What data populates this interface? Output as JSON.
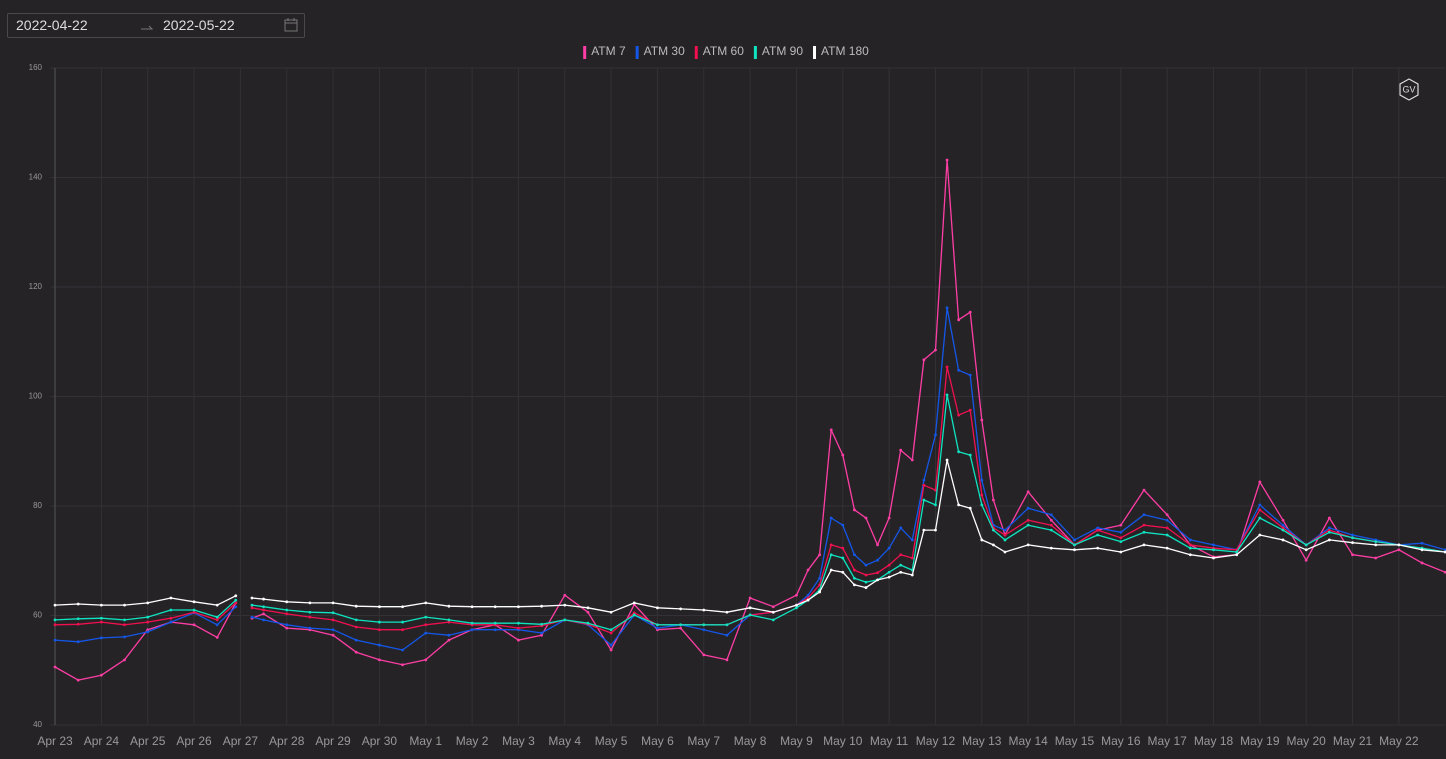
{
  "date_range": {
    "start": "2022-04-22",
    "end": "2022-05-22"
  },
  "logo": "GV",
  "chart_data": {
    "type": "line",
    "x": [
      0,
      0.5,
      1,
      1.5,
      2,
      2.5,
      3,
      3.5,
      3.9,
      4.05,
      4.25,
      4.5,
      5,
      5.5,
      6,
      6.5,
      7,
      7.5,
      8,
      8.5,
      9,
      9.5,
      10,
      10.5,
      11,
      11.5,
      12,
      12.5,
      13,
      13.5,
      14,
      14.5,
      15,
      15.5,
      16,
      16.25,
      16.5,
      16.75,
      17,
      17.25,
      17.5,
      17.75,
      18,
      18.25,
      18.5,
      18.75,
      19,
      19.25,
      19.5,
      19.75,
      20,
      20.25,
      20.5,
      21,
      21.5,
      22,
      22.5,
      23,
      23.5,
      24,
      24.5,
      25,
      25.5,
      26,
      26.5,
      27,
      27.5,
      28,
      28.5,
      29,
      29.5,
      30
    ],
    "series": [
      {
        "name": "ATM 7",
        "color": "#ff3ea5",
        "values": [
          50.6,
          48.2,
          49.1,
          51.9,
          57.4,
          58.8,
          58.3,
          56,
          62.3,
          null,
          59.5,
          60.3,
          57.7,
          57.4,
          56.4,
          53.3,
          51.9,
          51,
          51.9,
          55.5,
          57.4,
          58.3,
          55.5,
          56.4,
          63.7,
          60.6,
          53.7,
          62,
          57.4,
          57.7,
          52.8,
          51.9,
          63.2,
          61.6,
          63.7,
          68.3,
          71.1,
          93.9,
          89.3,
          79.3,
          77.8,
          72.9,
          77.8,
          90.2,
          88.4,
          106.7,
          108.5,
          143.2,
          114,
          115.4,
          95.7,
          81.1,
          74.7,
          82.6,
          77.4,
          72.9,
          75.6,
          76.5,
          82.9,
          78.4,
          72.9,
          70.7,
          71.1,
          84.4,
          77.4,
          70.1,
          77.8,
          71.1,
          70.5,
          72,
          69.6,
          67.9
        ]
      },
      {
        "name": "ATM 30",
        "color": "#1457e8",
        "values": [
          55.5,
          55.2,
          55.9,
          56.1,
          57,
          58.8,
          60.5,
          58.3,
          61.6,
          null,
          59.7,
          59.2,
          58.3,
          57.7,
          57.4,
          55.5,
          54.6,
          53.7,
          56.8,
          56.4,
          57.4,
          57.4,
          57.4,
          56.8,
          59.2,
          58.3,
          54.6,
          60.1,
          57.7,
          58.3,
          57.4,
          56.4,
          60.1,
          60.6,
          61.9,
          63.7,
          66.8,
          77.8,
          76.5,
          71.1,
          69.2,
          70.1,
          72.3,
          76,
          73.8,
          84.7,
          93,
          116.2,
          104.8,
          103.9,
          84.7,
          76.5,
          75.6,
          79.6,
          78.4,
          73.8,
          76,
          75.2,
          78.4,
          77.4,
          73.8,
          72.9,
          72,
          80.2,
          76.5,
          72.9,
          76,
          74.7,
          73.8,
          72.9,
          73.2,
          72
        ]
      },
      {
        "name": "ATM 60",
        "color": "#f0104f",
        "values": [
          58.3,
          58.4,
          58.8,
          58.3,
          58.8,
          59.5,
          60.6,
          59.2,
          62.3,
          null,
          61.4,
          61,
          60.3,
          59.7,
          59.2,
          57.9,
          57.4,
          57.4,
          58.3,
          58.8,
          58.3,
          58.3,
          57.7,
          58.1,
          59.2,
          58.4,
          56.8,
          60.5,
          58.3,
          58.3,
          58.3,
          58.3,
          60.1,
          60.6,
          61.9,
          63.2,
          65.6,
          72.9,
          72.3,
          68.3,
          67.4,
          67.8,
          69.2,
          71.1,
          70.5,
          83.8,
          82.9,
          105.4,
          96.6,
          97.5,
          82,
          76,
          74.7,
          77.4,
          76.5,
          72.9,
          75.6,
          74.2,
          76.5,
          76,
          72.9,
          72.3,
          72,
          79.3,
          76,
          72.9,
          75.6,
          74.2,
          73.5,
          72.9,
          72.3,
          71.6
        ]
      },
      {
        "name": "ATM 90",
        "color": "#0fe3c0",
        "values": [
          59.2,
          59.4,
          59.5,
          59.2,
          59.7,
          61,
          61,
          59.7,
          62.8,
          null,
          61.9,
          61.6,
          61,
          60.6,
          60.5,
          59.2,
          58.8,
          58.8,
          59.7,
          59.2,
          58.6,
          58.6,
          58.6,
          58.4,
          59.2,
          58.6,
          57.4,
          60.1,
          58.3,
          58.3,
          58.3,
          58.3,
          60.1,
          59.2,
          61.4,
          62.8,
          64.7,
          71.1,
          70.5,
          66.8,
          66.1,
          66.5,
          67.9,
          69.2,
          68.3,
          81.1,
          80.2,
          100.3,
          89.9,
          89.3,
          80.2,
          75.6,
          73.8,
          76.5,
          75.6,
          72.9,
          74.7,
          73.5,
          75.2,
          74.7,
          72.3,
          72,
          71.6,
          77.8,
          75.6,
          72.9,
          75.2,
          74.2,
          73.5,
          72.9,
          72.3,
          71.6
        ]
      },
      {
        "name": "ATM 180",
        "color": "#ffffff",
        "values": [
          61.9,
          62.1,
          61.9,
          61.9,
          62.3,
          63.2,
          62.5,
          61.9,
          63.6,
          null,
          63.2,
          63,
          62.5,
          62.3,
          62.3,
          61.7,
          61.6,
          61.6,
          62.3,
          61.7,
          61.6,
          61.6,
          61.6,
          61.7,
          61.9,
          61.4,
          60.6,
          62.3,
          61.4,
          61.2,
          61,
          60.6,
          61.4,
          60.6,
          61.9,
          62.8,
          64.3,
          68.3,
          67.9,
          65.6,
          65.1,
          66.5,
          67,
          67.9,
          67.4,
          75.6,
          75.6,
          88.4,
          80.2,
          79.6,
          73.8,
          72.9,
          71.6,
          72.9,
          72.3,
          72,
          72.3,
          71.6,
          72.9,
          72.3,
          71.1,
          70.5,
          71.1,
          74.7,
          73.8,
          72,
          73.8,
          73.3,
          72.9,
          72.9,
          72,
          71.6
        ]
      }
    ],
    "xlim": [
      -0.1,
      30
    ],
    "xticks": [
      {
        "value": 0,
        "label": "Apr 23"
      },
      {
        "value": 1,
        "label": "Apr 24"
      },
      {
        "value": 2,
        "label": "Apr 25"
      },
      {
        "value": 3,
        "label": "Apr 26"
      },
      {
        "value": 4,
        "label": "Apr 27"
      },
      {
        "value": 5,
        "label": "Apr 28"
      },
      {
        "value": 6,
        "label": "Apr 29"
      },
      {
        "value": 7,
        "label": "Apr 30"
      },
      {
        "value": 8,
        "label": "May 1"
      },
      {
        "value": 9,
        "label": "May 2"
      },
      {
        "value": 10,
        "label": "May 3"
      },
      {
        "value": 11,
        "label": "May 4"
      },
      {
        "value": 12,
        "label": "May 5"
      },
      {
        "value": 13,
        "label": "May 6"
      },
      {
        "value": 14,
        "label": "May 7"
      },
      {
        "value": 15,
        "label": "May 8"
      },
      {
        "value": 16,
        "label": "May 9"
      },
      {
        "value": 17,
        "label": "May 10"
      },
      {
        "value": 18,
        "label": "May 11"
      },
      {
        "value": 19,
        "label": "May 12"
      },
      {
        "value": 20,
        "label": "May 13"
      },
      {
        "value": 21,
        "label": "May 14"
      },
      {
        "value": 22,
        "label": "May 15"
      },
      {
        "value": 23,
        "label": "May 16"
      },
      {
        "value": 24,
        "label": "May 17"
      },
      {
        "value": 25,
        "label": "May 18"
      },
      {
        "value": 26,
        "label": "May 19"
      },
      {
        "value": 27,
        "label": "May 20"
      },
      {
        "value": 28,
        "label": "May 21"
      },
      {
        "value": 29,
        "label": "May 22"
      }
    ],
    "ylim": [
      40,
      160
    ],
    "yticks": [
      40,
      60,
      80,
      100,
      120,
      140,
      160
    ],
    "grid": true,
    "legend": "top"
  }
}
